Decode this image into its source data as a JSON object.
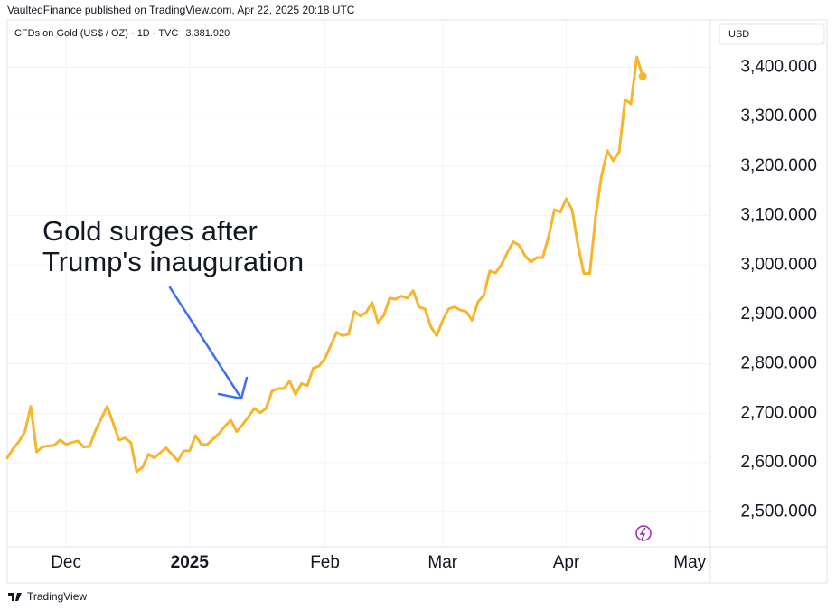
{
  "chart_data": {
    "type": "line",
    "header": "VaultedFinance published on TradingView.com, Apr 22, 2025 20:18 UTC",
    "currency": "USD",
    "annotation": [
      "Gold surges after",
      "Trump's inauguration"
    ],
    "footer": "TradingView",
    "categories": [
      null,
      null,
      null,
      null,
      null,
      null,
      null,
      null,
      null,
      null,
      "Dec",
      null,
      null,
      null,
      null,
      null,
      null,
      null,
      null,
      null,
      null,
      null,
      null,
      null,
      null,
      null,
      null,
      null,
      null,
      null,
      null,
      "2025",
      null,
      null,
      null,
      null,
      null,
      null,
      null,
      null,
      null,
      null,
      null,
      null,
      null,
      null,
      null,
      null,
      null,
      null,
      null,
      null,
      null,
      null,
      "Feb",
      null,
      null,
      null,
      null,
      null,
      null,
      null,
      null,
      null,
      null,
      null,
      null,
      null,
      null,
      null,
      null,
      null,
      null,
      null,
      "Mar",
      null,
      null,
      null,
      null,
      null,
      null,
      null,
      null,
      null,
      null,
      null,
      null,
      null,
      null,
      null,
      null,
      null,
      null,
      null,
      null,
      "Apr",
      null,
      null,
      null,
      null,
      null,
      null,
      null,
      null,
      null,
      null,
      null,
      null,
      null,
      null,
      null,
      null,
      null,
      null,
      null,
      null,
      "May",
      null,
      null,
      null
    ],
    "series": [
      {
        "name": "CFDs on Gold (US$ / OZ) · 1D · TVC",
        "color": "#f7b52c",
        "last_value_label": "3,381.920",
        "values": [
          2610,
          2628,
          2643,
          2662,
          2714,
          2622,
          2632,
          2634,
          2635,
          2646,
          2637,
          2641,
          2644,
          2632,
          2633,
          2665,
          2690,
          2714,
          2680,
          2646,
          2650,
          2641,
          2582,
          2591,
          2617,
          2610,
          2620,
          2630,
          2617,
          2604,
          2624,
          2624,
          2655,
          2637,
          2637,
          2648,
          2659,
          2674,
          2686,
          2663,
          2677,
          2693,
          2710,
          2701,
          2710,
          2745,
          2750,
          2750,
          2765,
          2738,
          2760,
          2756,
          2791,
          2796,
          2811,
          2838,
          2864,
          2857,
          2860,
          2906,
          2897,
          2904,
          2924,
          2884,
          2898,
          2933,
          2931,
          2937,
          2933,
          2948,
          2915,
          2911,
          2875,
          2857,
          2888,
          2911,
          2915,
          2909,
          2906,
          2888,
          2925,
          2939,
          2988,
          2984,
          3001,
          3025,
          3047,
          3040,
          3019,
          3006,
          3015,
          3015,
          3057,
          3112,
          3107,
          3134,
          3112,
          3040,
          2983,
          2983,
          3098,
          3180,
          3231,
          3211,
          3229,
          3335,
          3326,
          3421,
          3381.92,
          null,
          null,
          null,
          null,
          null,
          null,
          null,
          null,
          null,
          null,
          null
        ]
      }
    ],
    "ylim": [
      2430,
      3496
    ],
    "yticks": [
      {
        "value": 2500,
        "label": "2,500.000"
      },
      {
        "value": 2600,
        "label": "2,600.000"
      },
      {
        "value": 2700,
        "label": "2,700.000"
      },
      {
        "value": 2800,
        "label": "2,800.000"
      },
      {
        "value": 2900,
        "label": "2,900.000"
      },
      {
        "value": 3000,
        "label": "3,000.000"
      },
      {
        "value": 3100,
        "label": "3,100.000"
      },
      {
        "value": 3200,
        "label": "3,200.000"
      },
      {
        "value": 3300,
        "label": "3,300.000"
      },
      {
        "value": 3400,
        "label": "3,400.000"
      }
    ],
    "grid": true
  }
}
